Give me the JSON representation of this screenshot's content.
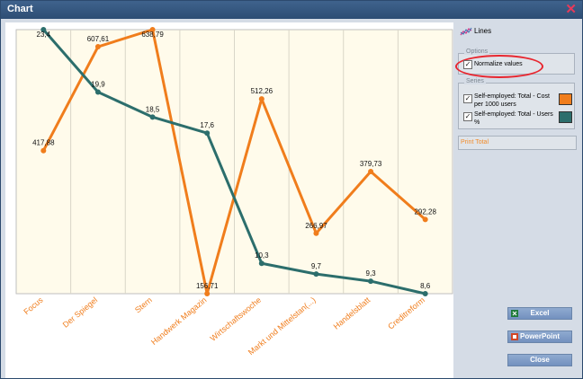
{
  "window": {
    "title": "Chart"
  },
  "options": {
    "chart_type_label": "Lines",
    "group_label": "Options",
    "normalize_label": "Normalize values",
    "normalize_checked": true
  },
  "series_panel": {
    "group_label": "Series",
    "items": [
      {
        "label": "Self-employed: Total - Cost per 1000 users",
        "checked": true,
        "color": "#f07d1c"
      },
      {
        "label": "Self-employed: Total - Users %",
        "checked": true,
        "color": "#2c6e6c"
      }
    ]
  },
  "print_total_label": "Print Total",
  "buttons": {
    "excel": "Excel",
    "powerpoint": "PowerPoint",
    "close": "Close"
  },
  "chart_data": {
    "type": "line",
    "categories": [
      "Focus",
      "Der Spiegel",
      "Stern",
      "Handwerk Magazin",
      "Wirtschaftswoche",
      "Markt und Mittelstan(...)",
      "Handelsblatt",
      "Creditreform"
    ],
    "normalized": true,
    "grid": "vertical lines",
    "series": [
      {
        "name": "Self-employed: Total - Cost per 1000 users",
        "color": "#f07d1c",
        "values": [
          417.88,
          607.61,
          638.79,
          156.71,
          512.26,
          266.97,
          379.73,
          292.28
        ],
        "labels": [
          "417,88",
          "607,61",
          "638,79",
          "156,71",
          "512,26",
          "266,97",
          "379,73",
          "292,28"
        ]
      },
      {
        "name": "Self-employed: Total - Users %",
        "color": "#2c6e6c",
        "values": [
          23.4,
          19.9,
          18.5,
          17.6,
          10.3,
          9.7,
          9.3,
          8.6
        ],
        "labels": [
          "23,4",
          "19,9",
          "18,5",
          "17,6",
          "10,3",
          "9,7",
          "9,3",
          "8,6"
        ]
      }
    ],
    "category_label_color": "#f07d1c"
  }
}
